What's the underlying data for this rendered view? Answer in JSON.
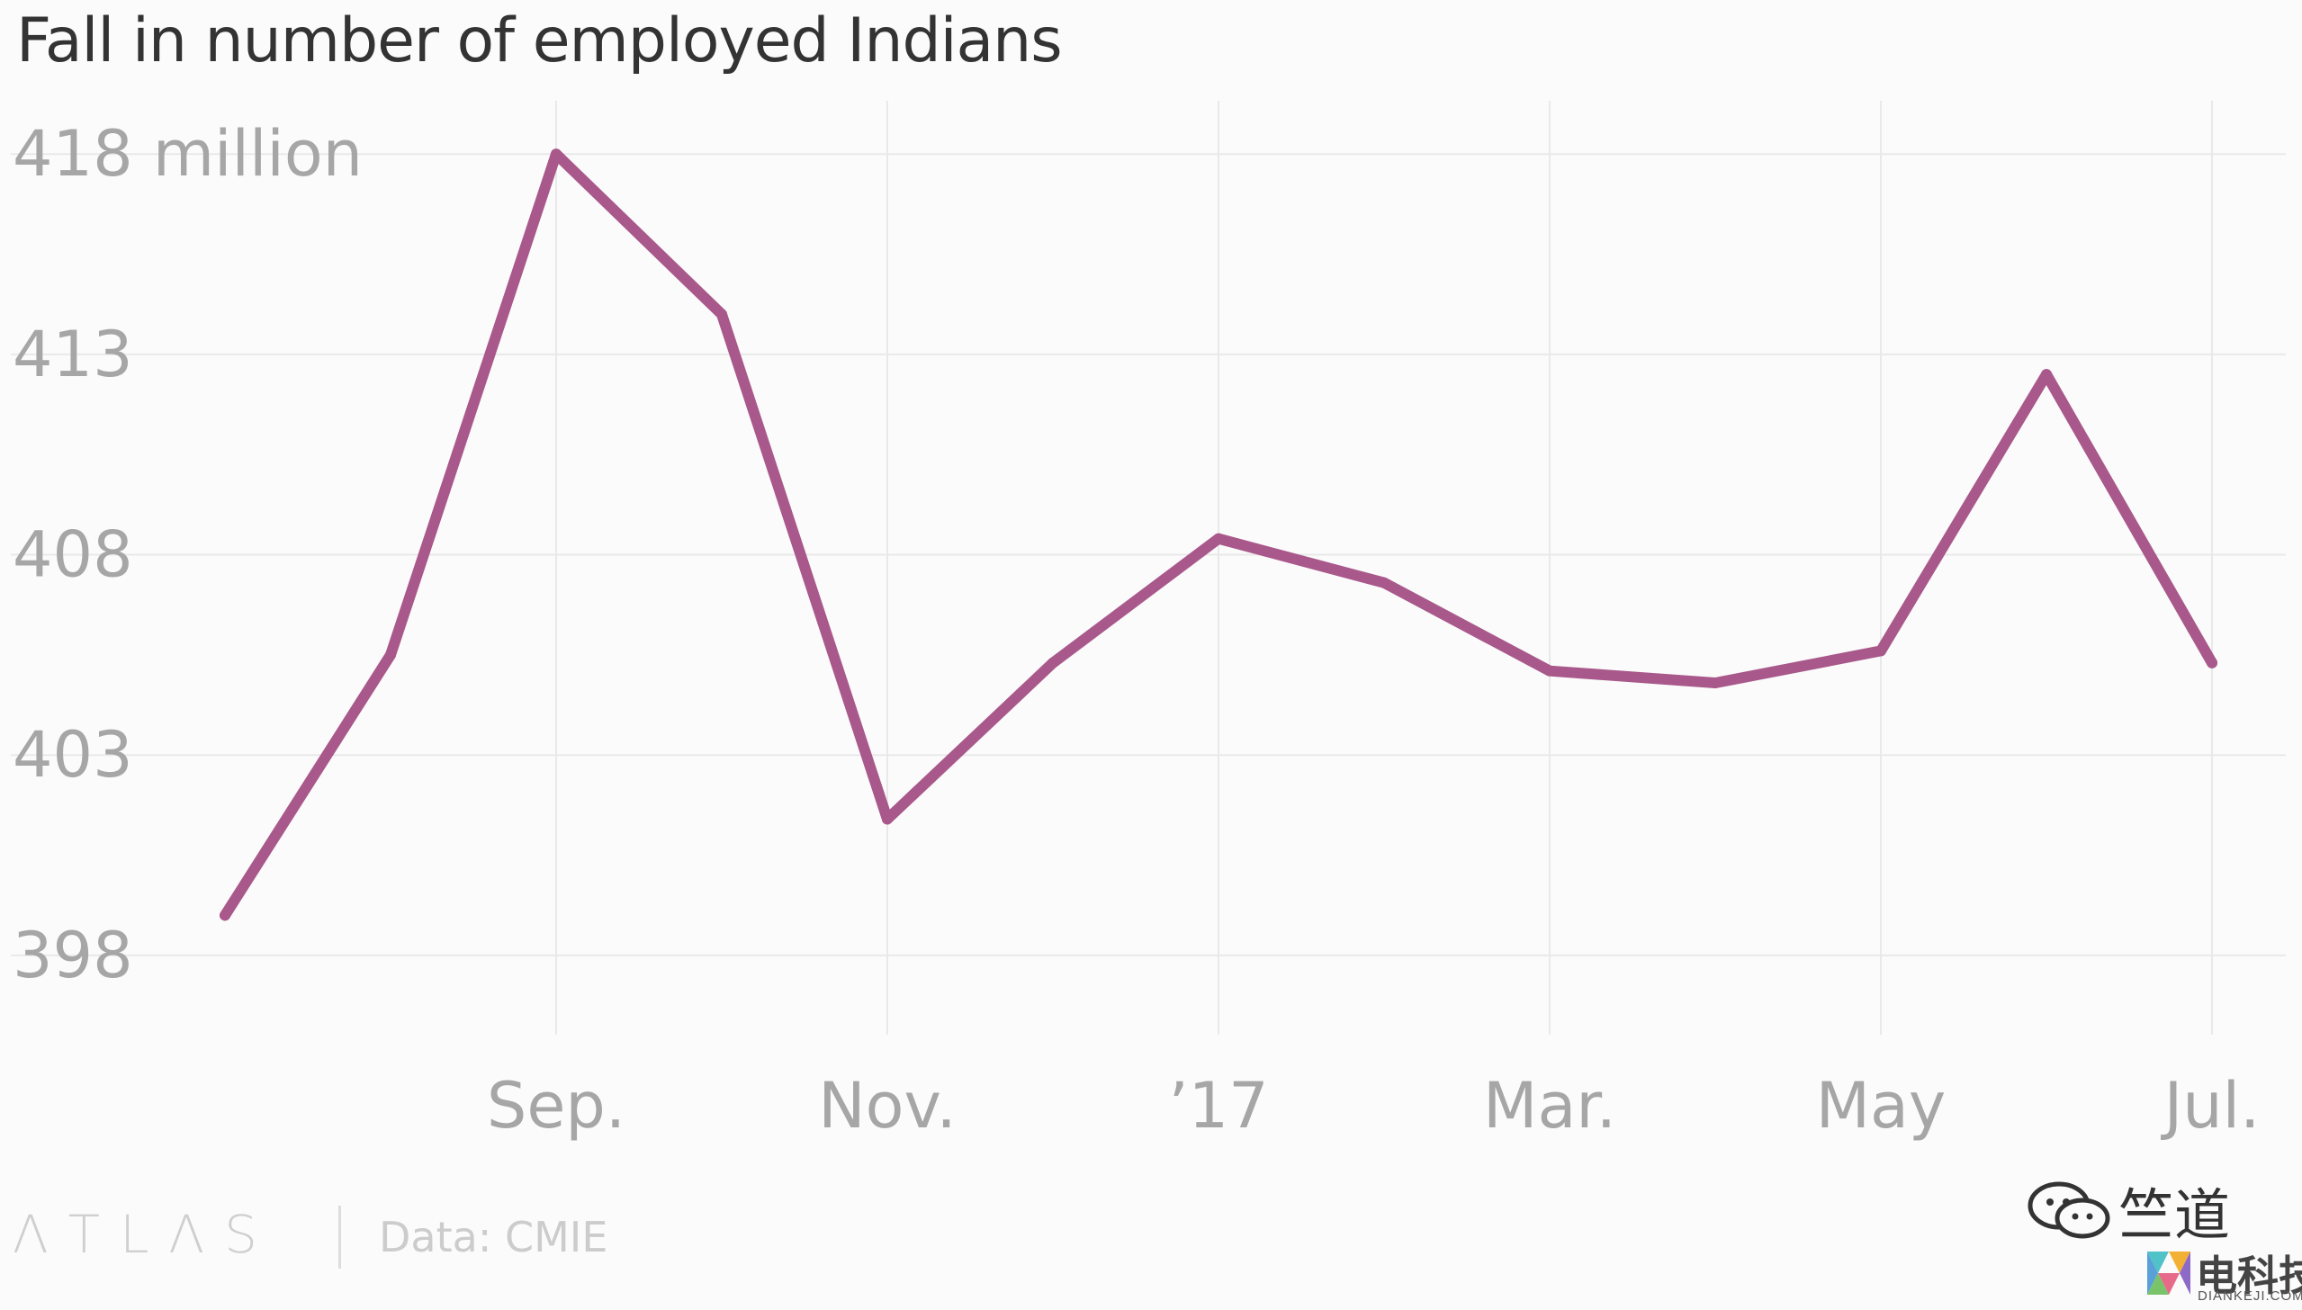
{
  "chart_data": {
    "type": "line",
    "title": "Fall in number of employed Indians",
    "xlabel": "",
    "ylabel": "",
    "y_ticks": [
      {
        "value": 398,
        "label": "398"
      },
      {
        "value": 403,
        "label": "403"
      },
      {
        "value": 408,
        "label": "408"
      },
      {
        "value": 413,
        "label": "413"
      },
      {
        "value": 418,
        "label": "418 million"
      }
    ],
    "ylim": [
      396.2,
      419.6
    ],
    "x_ticks": [
      {
        "index": 2,
        "label": "Sep."
      },
      {
        "index": 4,
        "label": "Nov."
      },
      {
        "index": 6,
        "label": "’17"
      },
      {
        "index": 8,
        "label": "Mar."
      },
      {
        "index": 10,
        "label": "May"
      },
      {
        "index": 12,
        "label": "Jul."
      }
    ],
    "x_positions": [
      0,
      1,
      2,
      3,
      4,
      5,
      6,
      7,
      8,
      9,
      10,
      11,
      12
    ],
    "xlim": [
      0,
      12
    ],
    "grid": true,
    "series": [
      {
        "values": [
          399.0,
          405.5,
          418.0,
          414.0,
          401.4,
          405.3,
          408.4,
          407.3,
          405.1,
          404.8,
          405.6,
          412.5,
          405.3
        ]
      }
    ],
    "colors": {
      "line": "#a9588b",
      "grid": "#e9e9e9",
      "tick_text": "#a6a6a6",
      "title": "#333333"
    }
  },
  "footer": {
    "logo": "ΛTLΛS",
    "source": "Data: CMIE"
  },
  "watermark": {
    "wechat_name": "竺道",
    "brand_name": "电科技",
    "brand_domain": "DIANKEJI.COM"
  }
}
